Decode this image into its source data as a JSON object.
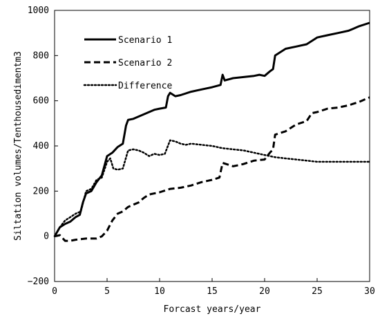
{
  "chart_data": {
    "type": "line",
    "title": "",
    "xlabel": "Forcast years/year",
    "ylabel": "Siltation volumes/Tenthousedimentm3",
    "xlim": [
      0,
      30
    ],
    "ylim": [
      -200,
      1000
    ],
    "xticks": [
      0,
      5,
      10,
      15,
      20,
      25,
      30
    ],
    "yticks": [
      -200,
      0,
      200,
      400,
      600,
      800,
      1000
    ],
    "grid": false,
    "legend_position": "top-left",
    "series": [
      {
        "name": "Scenario 1",
        "style": "solid",
        "color": "#000000",
        "x": [
          0,
          0.5,
          1,
          1.5,
          2,
          2.4,
          2.7,
          3,
          3.5,
          4,
          4.5,
          5,
          5.5,
          6,
          6.5,
          6.8,
          7,
          7.5,
          8,
          9,
          9.5,
          10,
          10.6,
          10.8,
          11,
          11.5,
          12,
          13,
          14,
          15,
          15.8,
          16,
          16.2,
          17,
          18,
          19,
          19.5,
          20,
          20.5,
          20.8,
          21,
          21.5,
          22,
          23,
          24,
          25,
          26,
          27,
          28,
          29,
          30
        ],
        "y": [
          0,
          40,
          55,
          65,
          85,
          95,
          150,
          190,
          200,
          240,
          270,
          355,
          370,
          395,
          410,
          490,
          515,
          520,
          530,
          550,
          560,
          565,
          570,
          620,
          635,
          620,
          625,
          640,
          650,
          660,
          670,
          715,
          690,
          700,
          705,
          710,
          715,
          710,
          730,
          740,
          800,
          815,
          830,
          840,
          850,
          880,
          890,
          900,
          910,
          930,
          945
        ]
      },
      {
        "name": "Scenario 2",
        "style": "dashed",
        "color": "#000000",
        "x": [
          0,
          0.5,
          1,
          1.5,
          2,
          3,
          4,
          4.5,
          5,
          5.5,
          6,
          6.5,
          7,
          7.5,
          8,
          8.5,
          9,
          10,
          11,
          12,
          13,
          14,
          15,
          15.7,
          16,
          17,
          17.5,
          18,
          19,
          20,
          20.5,
          20.8,
          21,
          22,
          23,
          24,
          24.5,
          25,
          26,
          27,
          28,
          29,
          30
        ],
        "y": [
          0,
          5,
          -20,
          -20,
          -15,
          -10,
          -10,
          0,
          25,
          70,
          100,
          110,
          130,
          140,
          150,
          170,
          185,
          195,
          210,
          215,
          225,
          240,
          250,
          260,
          325,
          310,
          315,
          320,
          335,
          340,
          370,
          385,
          450,
          465,
          495,
          510,
          545,
          550,
          565,
          570,
          580,
          595,
          615
        ]
      },
      {
        "name": "Difference",
        "style": "dotted",
        "color": "#000000",
        "x": [
          0,
          0.5,
          1,
          1.5,
          2,
          2.5,
          3,
          3.5,
          4,
          4.5,
          5,
          5.3,
          5.6,
          6,
          6.5,
          7,
          7.5,
          8,
          8.5,
          9,
          9.5,
          10,
          10.5,
          11,
          11.5,
          12,
          12.5,
          13,
          14,
          15,
          16,
          17,
          18,
          19,
          20,
          21,
          22,
          23,
          24,
          25,
          26,
          27,
          28,
          29,
          30
        ],
        "y": [
          0,
          40,
          70,
          85,
          100,
          110,
          200,
          210,
          250,
          260,
          330,
          345,
          300,
          295,
          300,
          380,
          385,
          380,
          370,
          355,
          365,
          360,
          365,
          425,
          420,
          410,
          405,
          410,
          405,
          400,
          390,
          385,
          380,
          370,
          360,
          350,
          345,
          340,
          335,
          330,
          330,
          330,
          330,
          330,
          330
        ]
      }
    ]
  }
}
